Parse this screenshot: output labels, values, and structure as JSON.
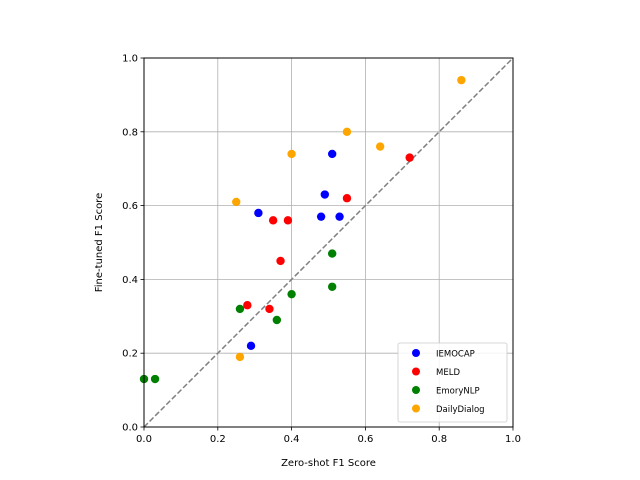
{
  "chart_data": {
    "type": "scatter",
    "title": "",
    "xlabel": "Zero-shot F1 Score",
    "ylabel": "Fine-tuned F1 Score",
    "xlim": [
      0.0,
      1.0
    ],
    "ylim": [
      0.0,
      1.0
    ],
    "xticks": [
      0.0,
      0.2,
      0.4,
      0.6,
      0.8,
      1.0
    ],
    "yticks": [
      0.0,
      0.2,
      0.4,
      0.6,
      0.8,
      1.0
    ],
    "xtick_labels": [
      "0.0",
      "0.2",
      "0.4",
      "0.6",
      "0.8",
      "1.0"
    ],
    "ytick_labels": [
      "0.0",
      "0.2",
      "0.4",
      "0.6",
      "0.8",
      "1.0"
    ],
    "grid": true,
    "reference_line": {
      "type": "diagonal",
      "from": [
        0,
        0
      ],
      "to": [
        1,
        1
      ],
      "style": "dashed",
      "color": "#808080"
    },
    "legend_position": "lower-right",
    "series": [
      {
        "name": "IEMOCAP",
        "color": "#0000ff",
        "x": [
          0.31,
          0.49,
          0.51,
          0.48,
          0.53,
          0.29
        ],
        "y": [
          0.58,
          0.63,
          0.74,
          0.57,
          0.57,
          0.22
        ]
      },
      {
        "name": "MELD",
        "color": "#ff0000",
        "x": [
          0.35,
          0.39,
          0.37,
          0.28,
          0.34,
          0.55,
          0.72
        ],
        "y": [
          0.56,
          0.56,
          0.45,
          0.33,
          0.32,
          0.62,
          0.73
        ]
      },
      {
        "name": "EmoryNLP",
        "color": "#008000",
        "x": [
          0.0,
          0.03,
          0.26,
          0.36,
          0.4,
          0.51,
          0.51
        ],
        "y": [
          0.13,
          0.13,
          0.32,
          0.29,
          0.36,
          0.38,
          0.47
        ]
      },
      {
        "name": "DailyDialog",
        "color": "#ffa500",
        "x": [
          0.25,
          0.26,
          0.4,
          0.55,
          0.64,
          0.86
        ],
        "y": [
          0.61,
          0.19,
          0.74,
          0.8,
          0.76,
          0.94
        ]
      }
    ]
  }
}
